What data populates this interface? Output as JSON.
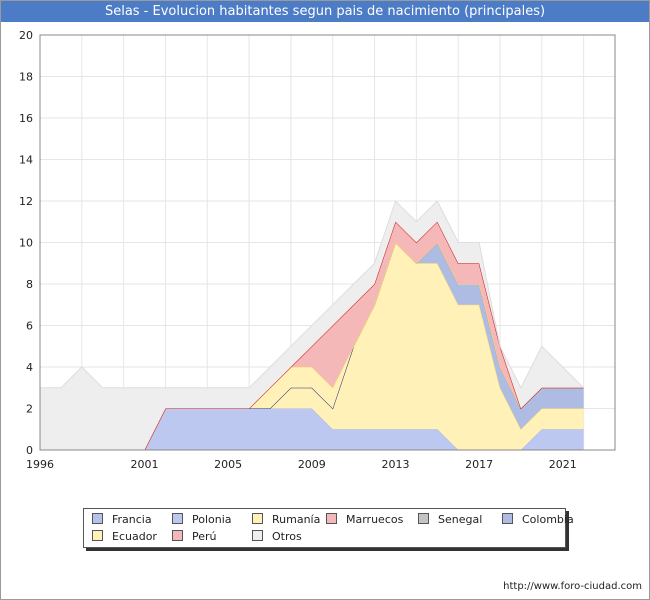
{
  "title": "Selas - Evolucion habitantes segun pais de nacimiento (principales)",
  "footer": "http://www.foro-ciudad.com",
  "chart_data": {
    "type": "area",
    "stacked": true,
    "x": [
      1996,
      1997,
      1998,
      1999,
      2000,
      2001,
      2002,
      2003,
      2004,
      2005,
      2006,
      2007,
      2008,
      2009,
      2010,
      2011,
      2012,
      2013,
      2014,
      2015,
      2016,
      2017,
      2018,
      2019,
      2020,
      2021,
      2022
    ],
    "xticks": [
      "1996",
      "2001",
      "2005",
      "2009",
      "2013",
      "2017",
      "2021"
    ],
    "yticks": [
      "0",
      "2",
      "4",
      "6",
      "8",
      "10",
      "12",
      "14",
      "16",
      "18",
      "20"
    ],
    "ylim": [
      0,
      20
    ],
    "xlim": [
      1996,
      2023.5
    ],
    "grid": true,
    "legend_position": "bottom",
    "series": [
      {
        "name": "Francia",
        "color": "#b5c2eb",
        "line": "#8f9fd8",
        "values": [
          0,
          0,
          0,
          0,
          0,
          0,
          0,
          0,
          0,
          0,
          0,
          0,
          0,
          0,
          0,
          0,
          0,
          0,
          0,
          0,
          0,
          0,
          0,
          0,
          0,
          0,
          0
        ]
      },
      {
        "name": "Polonia",
        "color": "#bcc8f0",
        "line": "#a8b8ea",
        "values": [
          0,
          0,
          0,
          0,
          0,
          0,
          2,
          2,
          2,
          2,
          2,
          2,
          2,
          2,
          1,
          1,
          1,
          1,
          1,
          1,
          0,
          0,
          0,
          0,
          1,
          1,
          1
        ]
      },
      {
        "name": "Rumanía",
        "color": "#fff1b8",
        "line": "#ffe066",
        "values": [
          0,
          0,
          0,
          0,
          0,
          0,
          0,
          0,
          0,
          0,
          0,
          0,
          1,
          1,
          1,
          4,
          6,
          9,
          8,
          8,
          7,
          7,
          3,
          1,
          1,
          1,
          1
        ]
      },
      {
        "name": "Marruecos",
        "color": "#f5b8b8",
        "line": "#d01010",
        "values": [
          0,
          0,
          0,
          0,
          0,
          0,
          0,
          0,
          0,
          0,
          0,
          0,
          0,
          0,
          0,
          0,
          0,
          0,
          0,
          0,
          0,
          0,
          0,
          0,
          0,
          0,
          0
        ]
      },
      {
        "name": "Senegal",
        "color": "#c4c4c4",
        "line": "#aaaaaa",
        "values": [
          0,
          0,
          0,
          0,
          0,
          0,
          0,
          0,
          0,
          0,
          0,
          0,
          0,
          0,
          0,
          0,
          0,
          0,
          0,
          0,
          0,
          0,
          0,
          0,
          0,
          0,
          0
        ]
      },
      {
        "name": "Colombia",
        "color": "#aebbe2",
        "line": "#1a2a88",
        "values": [
          0,
          0,
          0,
          0,
          0,
          0,
          0,
          0,
          0,
          0,
          0,
          0,
          0,
          0,
          0,
          0,
          0,
          0,
          0,
          1,
          1,
          1,
          1,
          1,
          1,
          1,
          1
        ]
      },
      {
        "name": "Ecuador",
        "color": "#fff1b8",
        "line": "#ffe066",
        "values": [
          0,
          0,
          0,
          0,
          0,
          0,
          0,
          0,
          0,
          0,
          0,
          1,
          1,
          1,
          1,
          0,
          0,
          0,
          0,
          0,
          0,
          0,
          0,
          0,
          0,
          0,
          0
        ]
      },
      {
        "name": "Perú",
        "color": "#f5b8b8",
        "line": "#d01010",
        "values": [
          0,
          0,
          0,
          0,
          0,
          0,
          0,
          0,
          0,
          0,
          0,
          0,
          0,
          1,
          3,
          2,
          1,
          1,
          1,
          1,
          1,
          1,
          1,
          0,
          0,
          0,
          0
        ]
      },
      {
        "name": "Otros",
        "color": "#eeeeee",
        "line": "#dddddd",
        "values": [
          3,
          3,
          4,
          3,
          3,
          3,
          1,
          1,
          1,
          1,
          1,
          1,
          1,
          1,
          1,
          1,
          1,
          1,
          1,
          1,
          1,
          1,
          0,
          1,
          2,
          1,
          0
        ]
      }
    ]
  }
}
